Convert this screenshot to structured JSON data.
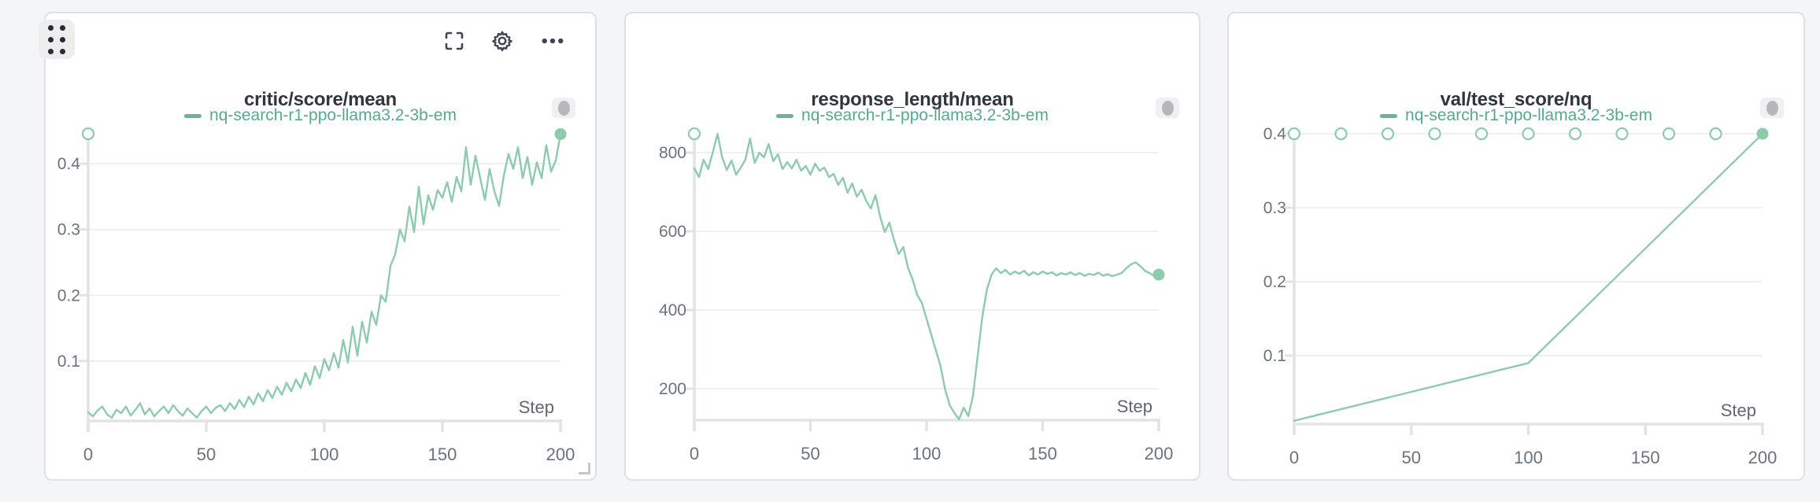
{
  "app": {
    "background": "#f4f5f6",
    "panel_background": "#ffffff",
    "panel_border": "#dfe0e3"
  },
  "colors": {
    "line": "#8ecbad",
    "legend": "#57a98e",
    "legend_dash": "#6db39a",
    "title": "#31353e",
    "tick_label": "#6a7280",
    "step_label": "#5f6673",
    "grid": "#ececee",
    "axis": "#e2e3e5",
    "icon": "#3e4556",
    "marker_fill": "#ffffff"
  },
  "toolbar": {
    "icons": [
      "drag-grip",
      "fullscreen",
      "settings",
      "more-options"
    ]
  },
  "chart_data": [
    {
      "type": "line",
      "title": "critic/score/mean",
      "legend": "nq-search-r1-ppo-llama3.2-3b-em",
      "xlabel": "Step",
      "grid": true,
      "legend_position": "top-center",
      "xlim": [
        0,
        200
      ],
      "ylim": [
        0.009,
        0.4455
      ],
      "x_ticks": [
        0,
        50,
        100,
        150,
        200
      ],
      "y_ticks": [
        0.1,
        0.2,
        0.3,
        0.4
      ],
      "start_marker": {
        "x": 0,
        "y": 0.4455,
        "style": "hollow"
      },
      "end_marker": {
        "x": 200,
        "y": 0.445,
        "style": "filled"
      },
      "series": [
        {
          "name": "nq-search-r1-ppo-llama3.2-3b-em",
          "points": [
            [
              0,
              0.022
            ],
            [
              2,
              0.016
            ],
            [
              4,
              0.025
            ],
            [
              6,
              0.031
            ],
            [
              8,
              0.019
            ],
            [
              10,
              0.014
            ],
            [
              12,
              0.026
            ],
            [
              14,
              0.021
            ],
            [
              16,
              0.031
            ],
            [
              18,
              0.017
            ],
            [
              20,
              0.026
            ],
            [
              22,
              0.036
            ],
            [
              24,
              0.019
            ],
            [
              26,
              0.028
            ],
            [
              28,
              0.016
            ],
            [
              30,
              0.024
            ],
            [
              32,
              0.031
            ],
            [
              34,
              0.021
            ],
            [
              36,
              0.033
            ],
            [
              38,
              0.024
            ],
            [
              40,
              0.017
            ],
            [
              42,
              0.028
            ],
            [
              44,
              0.021
            ],
            [
              46,
              0.014
            ],
            [
              48,
              0.024
            ],
            [
              50,
              0.031
            ],
            [
              52,
              0.021
            ],
            [
              54,
              0.029
            ],
            [
              56,
              0.033
            ],
            [
              58,
              0.024
            ],
            [
              60,
              0.036
            ],
            [
              62,
              0.027
            ],
            [
              64,
              0.041
            ],
            [
              66,
              0.03
            ],
            [
              68,
              0.046
            ],
            [
              70,
              0.034
            ],
            [
              72,
              0.051
            ],
            [
              74,
              0.039
            ],
            [
              76,
              0.056
            ],
            [
              78,
              0.044
            ],
            [
              80,
              0.061
            ],
            [
              82,
              0.049
            ],
            [
              84,
              0.067
            ],
            [
              86,
              0.054
            ],
            [
              88,
              0.072
            ],
            [
              90,
              0.059
            ],
            [
              92,
              0.082
            ],
            [
              94,
              0.064
            ],
            [
              96,
              0.092
            ],
            [
              98,
              0.074
            ],
            [
              100,
              0.103
            ],
            [
              102,
              0.086
            ],
            [
              104,
              0.112
            ],
            [
              106,
              0.09
            ],
            [
              108,
              0.132
            ],
            [
              110,
              0.098
            ],
            [
              112,
              0.152
            ],
            [
              114,
              0.108
            ],
            [
              116,
              0.16
            ],
            [
              118,
              0.128
            ],
            [
              120,
              0.175
            ],
            [
              122,
              0.155
            ],
            [
              124,
              0.2
            ],
            [
              126,
              0.19
            ],
            [
              128,
              0.245
            ],
            [
              130,
              0.262
            ],
            [
              132,
              0.3
            ],
            [
              134,
              0.282
            ],
            [
              136,
              0.335
            ],
            [
              138,
              0.296
            ],
            [
              140,
              0.365
            ],
            [
              142,
              0.308
            ],
            [
              144,
              0.352
            ],
            [
              146,
              0.33
            ],
            [
              148,
              0.36
            ],
            [
              150,
              0.348
            ],
            [
              152,
              0.372
            ],
            [
              154,
              0.342
            ],
            [
              156,
              0.38
            ],
            [
              158,
              0.358
            ],
            [
              160,
              0.425
            ],
            [
              162,
              0.368
            ],
            [
              164,
              0.412
            ],
            [
              166,
              0.378
            ],
            [
              168,
              0.345
            ],
            [
              170,
              0.392
            ],
            [
              172,
              0.358
            ],
            [
              174,
              0.336
            ],
            [
              176,
              0.382
            ],
            [
              178,
              0.415
            ],
            [
              180,
              0.392
            ],
            [
              182,
              0.425
            ],
            [
              184,
              0.378
            ],
            [
              186,
              0.41
            ],
            [
              188,
              0.368
            ],
            [
              190,
              0.402
            ],
            [
              192,
              0.378
            ],
            [
              194,
              0.428
            ],
            [
              196,
              0.388
            ],
            [
              198,
              0.405
            ],
            [
              200,
              0.445
            ]
          ]
        }
      ]
    },
    {
      "type": "line",
      "title": "response_length/mean",
      "legend": "nq-search-r1-ppo-llama3.2-3b-em",
      "xlabel": "Step",
      "grid": true,
      "legend_position": "top-center",
      "xlim": [
        0,
        200
      ],
      "ylim": [
        120,
        848
      ],
      "x_ticks": [
        0,
        50,
        100,
        150,
        200
      ],
      "y_ticks": [
        200,
        400,
        600,
        800
      ],
      "start_marker": {
        "x": 0,
        "y": 848,
        "style": "hollow"
      },
      "end_marker": {
        "x": 200,
        "y": 490,
        "style": "filled"
      },
      "series": [
        {
          "name": "nq-search-r1-ppo-llama3.2-3b-em",
          "points": [
            [
              0,
              760
            ],
            [
              2,
              738
            ],
            [
              4,
              782
            ],
            [
              6,
              758
            ],
            [
              8,
              802
            ],
            [
              10,
              848
            ],
            [
              12,
              788
            ],
            [
              14,
              756
            ],
            [
              16,
              780
            ],
            [
              18,
              744
            ],
            [
              20,
              762
            ],
            [
              22,
              782
            ],
            [
              24,
              836
            ],
            [
              26,
              774
            ],
            [
              28,
              800
            ],
            [
              30,
              788
            ],
            [
              32,
              822
            ],
            [
              34,
              778
            ],
            [
              36,
              796
            ],
            [
              38,
              758
            ],
            [
              40,
              776
            ],
            [
              42,
              760
            ],
            [
              44,
              782
            ],
            [
              46,
              754
            ],
            [
              48,
              766
            ],
            [
              50,
              744
            ],
            [
              52,
              772
            ],
            [
              54,
              754
            ],
            [
              56,
              762
            ],
            [
              58,
              738
            ],
            [
              60,
              746
            ],
            [
              62,
              718
            ],
            [
              64,
              736
            ],
            [
              66,
              698
            ],
            [
              68,
              722
            ],
            [
              70,
              688
            ],
            [
              72,
              706
            ],
            [
              74,
              678
            ],
            [
              76,
              658
            ],
            [
              78,
              692
            ],
            [
              80,
              638
            ],
            [
              82,
              598
            ],
            [
              84,
              622
            ],
            [
              86,
              578
            ],
            [
              88,
              542
            ],
            [
              90,
              560
            ],
            [
              92,
              508
            ],
            [
              94,
              478
            ],
            [
              96,
              438
            ],
            [
              98,
              418
            ],
            [
              100,
              378
            ],
            [
              102,
              338
            ],
            [
              104,
              298
            ],
            [
              106,
              258
            ],
            [
              108,
              198
            ],
            [
              110,
              158
            ],
            [
              112,
              138
            ],
            [
              114,
              122
            ],
            [
              116,
              152
            ],
            [
              118,
              130
            ],
            [
              120,
              182
            ],
            [
              122,
              282
            ],
            [
              124,
              382
            ],
            [
              126,
              452
            ],
            [
              128,
              490
            ],
            [
              130,
              506
            ],
            [
              132,
              494
            ],
            [
              134,
              502
            ],
            [
              136,
              490
            ],
            [
              138,
              498
            ],
            [
              140,
              492
            ],
            [
              142,
              500
            ],
            [
              144,
              488
            ],
            [
              146,
              496
            ],
            [
              148,
              490
            ],
            [
              150,
              498
            ],
            [
              152,
              492
            ],
            [
              154,
              496
            ],
            [
              156,
              488
            ],
            [
              158,
              494
            ],
            [
              160,
              490
            ],
            [
              162,
              496
            ],
            [
              164,
              489
            ],
            [
              166,
              494
            ],
            [
              168,
              487
            ],
            [
              170,
              492
            ],
            [
              172,
              489
            ],
            [
              174,
              495
            ],
            [
              176,
              487
            ],
            [
              178,
              491
            ],
            [
              180,
              486
            ],
            [
              182,
              490
            ],
            [
              184,
              494
            ],
            [
              186,
              506
            ],
            [
              188,
              516
            ],
            [
              190,
              521
            ],
            [
              192,
              512
            ],
            [
              194,
              500
            ],
            [
              196,
              494
            ],
            [
              198,
              487
            ],
            [
              200,
              490
            ]
          ]
        }
      ]
    },
    {
      "type": "line",
      "title": "val/test_score/nq",
      "legend": "nq-search-r1-ppo-llama3.2-3b-em",
      "xlabel": "Step",
      "grid": true,
      "legend_position": "top-center",
      "xlim": [
        0,
        200
      ],
      "ylim": [
        0.0074,
        0.4
      ],
      "x_ticks": [
        0,
        50,
        100,
        150,
        200
      ],
      "y_ticks": [
        0.1,
        0.2,
        0.3,
        0.4
      ],
      "eval_markers": {
        "style": "hollow",
        "y": 0.4,
        "x": [
          0,
          20,
          40,
          60,
          80,
          100,
          120,
          140,
          160,
          180
        ]
      },
      "end_marker": {
        "x": 200,
        "y": 0.4,
        "style": "filled"
      },
      "series": [
        {
          "name": "nq-search-r1-ppo-llama3.2-3b-em",
          "points": [
            [
              0,
              0.012
            ],
            [
              100,
              0.09
            ],
            [
              200,
              0.4
            ]
          ]
        }
      ]
    }
  ]
}
